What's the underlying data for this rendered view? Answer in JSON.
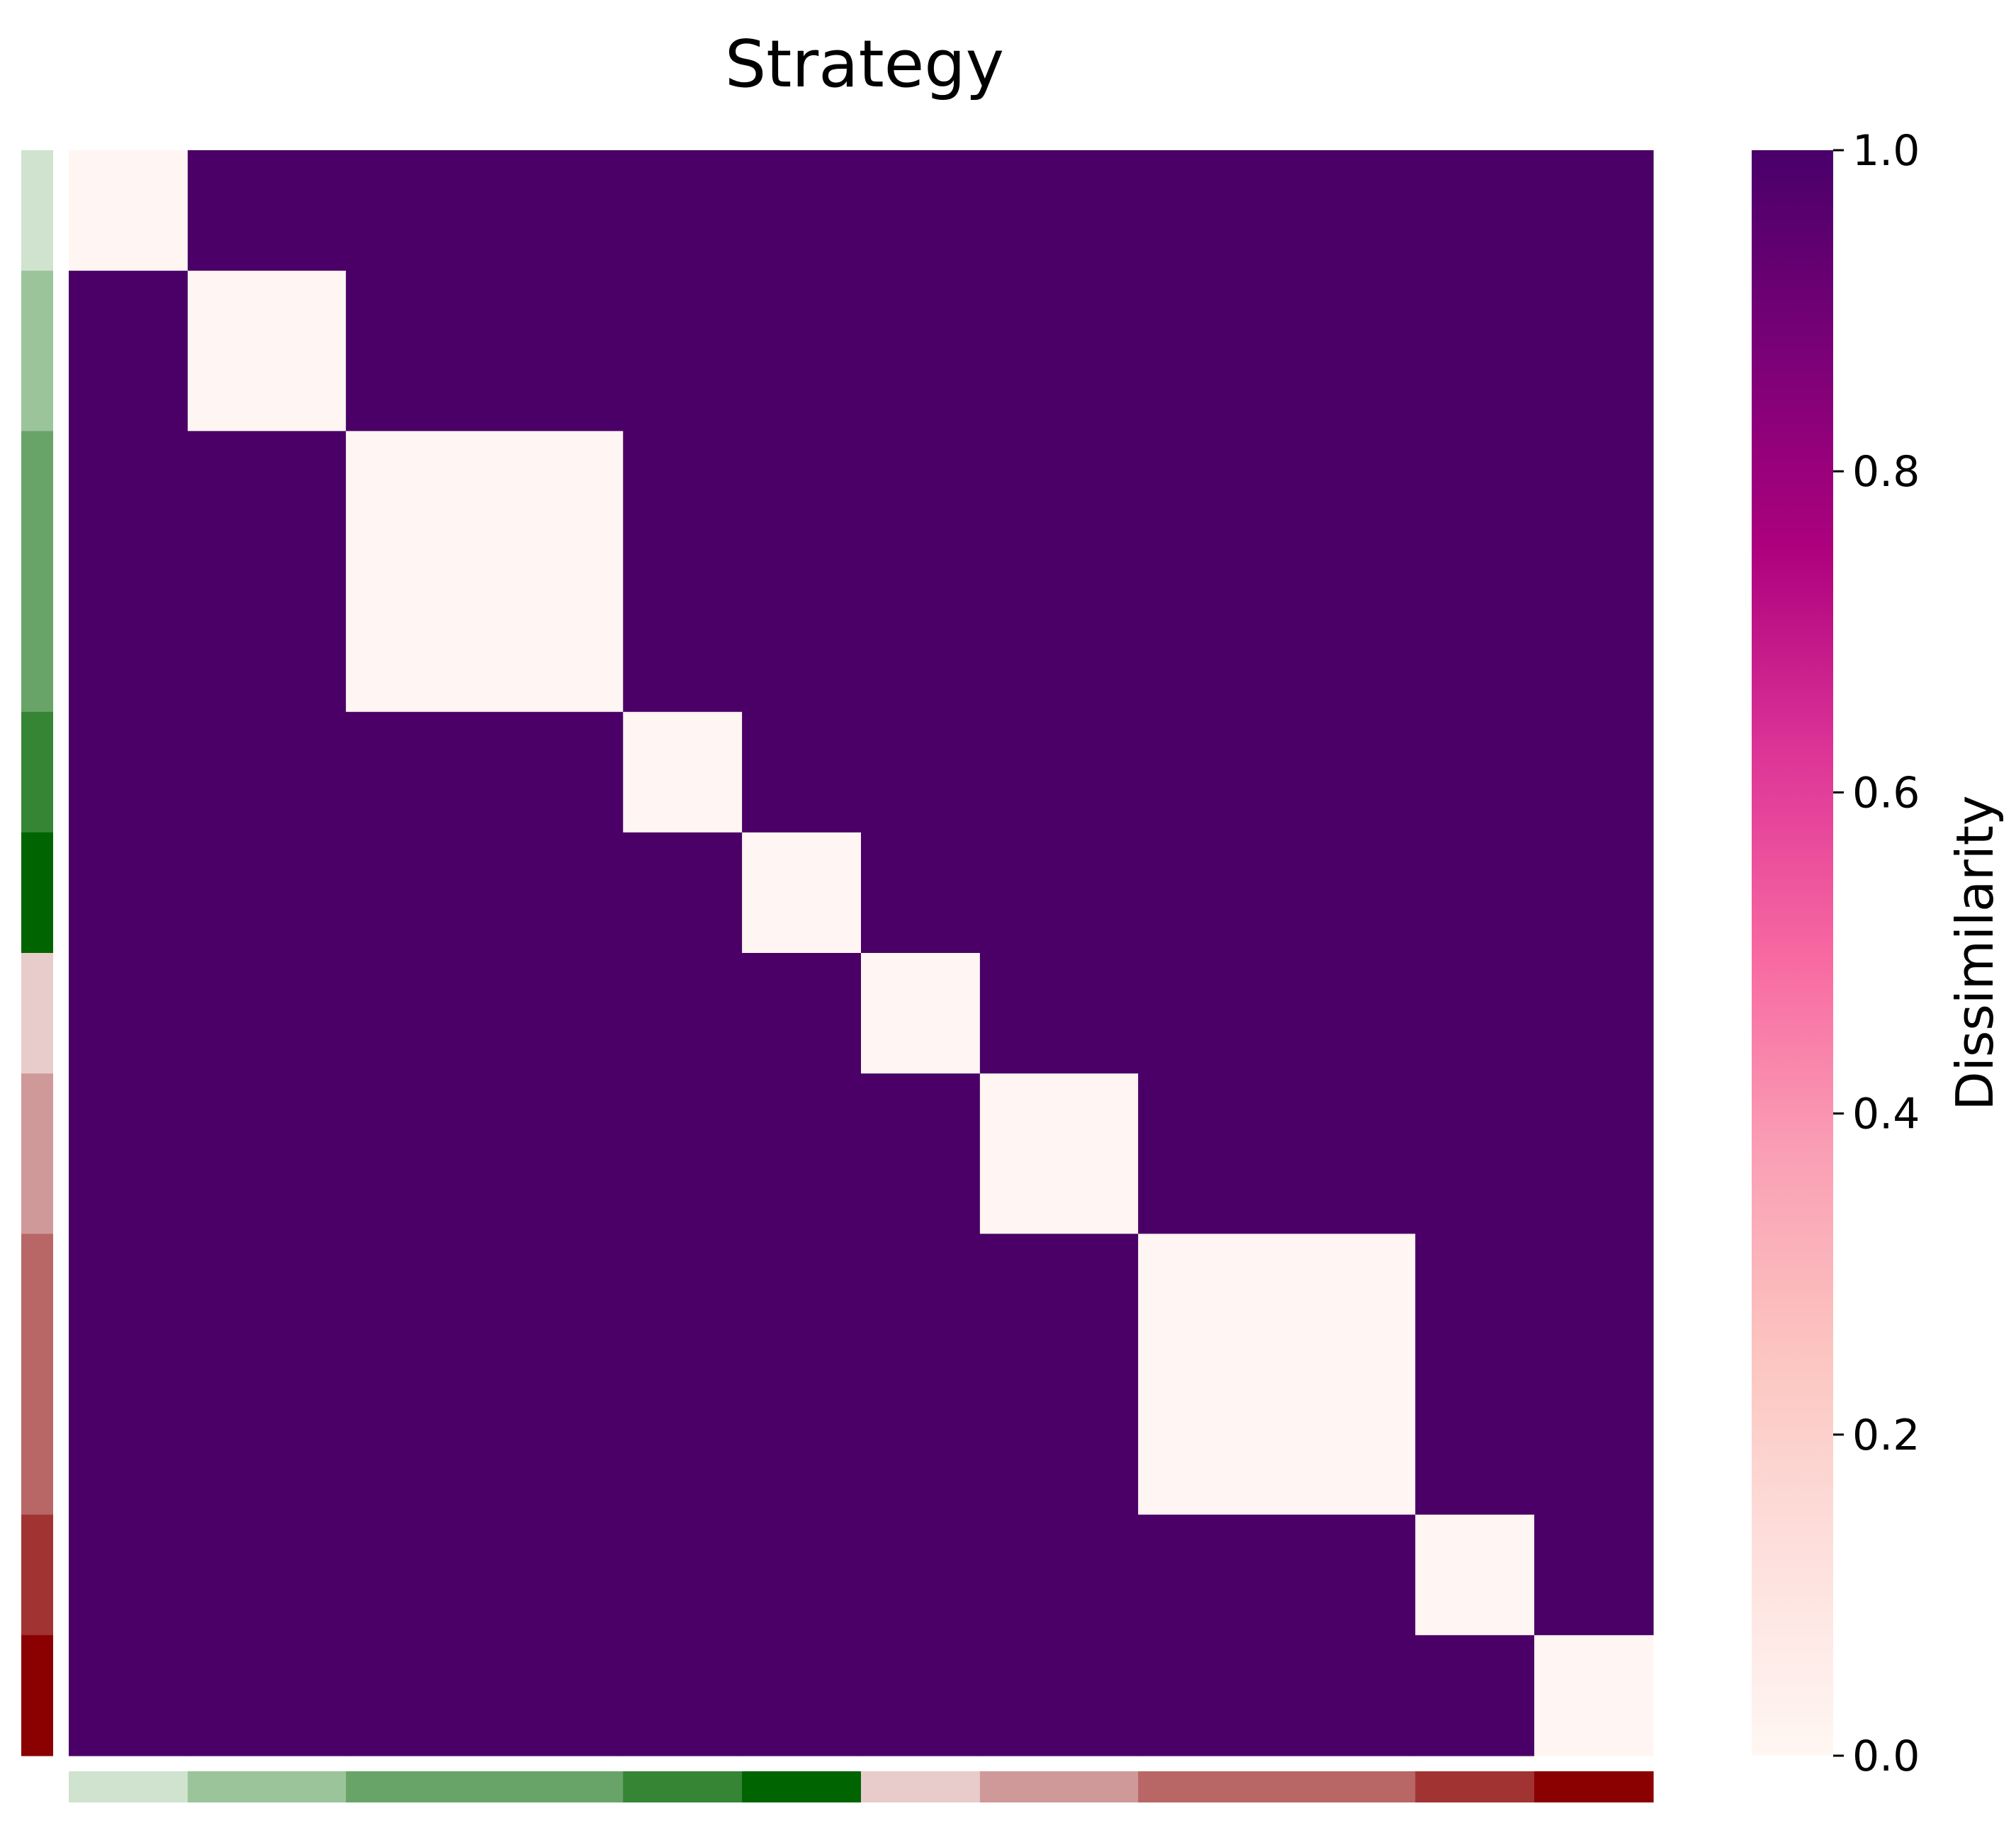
{
  "chart_data": {
    "type": "heatmap",
    "title": "Strategy",
    "groups": [
      {
        "size": 1,
        "color": "#cfe3cf"
      },
      {
        "size": 1,
        "color": "#9bc49b"
      },
      {
        "size": 2,
        "color": "#68a468"
      },
      {
        "size": 1,
        "color": "#358535"
      },
      {
        "size": 1,
        "color": "#006400"
      },
      {
        "size": 1,
        "color": "#e8cccc"
      },
      {
        "size": 1,
        "color": "#d09999"
      },
      {
        "size": 2,
        "color": "#b96666"
      },
      {
        "size": 1,
        "color": "#a23333"
      },
      {
        "size": 1,
        "color": "#8b0000"
      }
    ],
    "group_widths": [
      1,
      1.33,
      2.33,
      1,
      1,
      1,
      1.33,
      2.33,
      1,
      1
    ],
    "matrix_rule": "within-group dissimilarity 0.0, between-group dissimilarity 1.0",
    "value_range": [
      0.0,
      1.0
    ],
    "colorbar": {
      "label": "Dissimilarity",
      "ticks": [
        0.0,
        0.2,
        0.4,
        0.6,
        0.8,
        1.0
      ],
      "tick_labels": [
        "0.0",
        "0.2",
        "0.4",
        "0.6",
        "0.8",
        "1.0"
      ],
      "colormap": [
        "#fff7f3",
        "#fde0dd",
        "#fcc5c0",
        "#fa9fb5",
        "#f768a1",
        "#dd3497",
        "#ae017e",
        "#7a0177",
        "#49006a"
      ]
    },
    "low_color": "#fff5f2",
    "high_color": "#4a0066"
  }
}
